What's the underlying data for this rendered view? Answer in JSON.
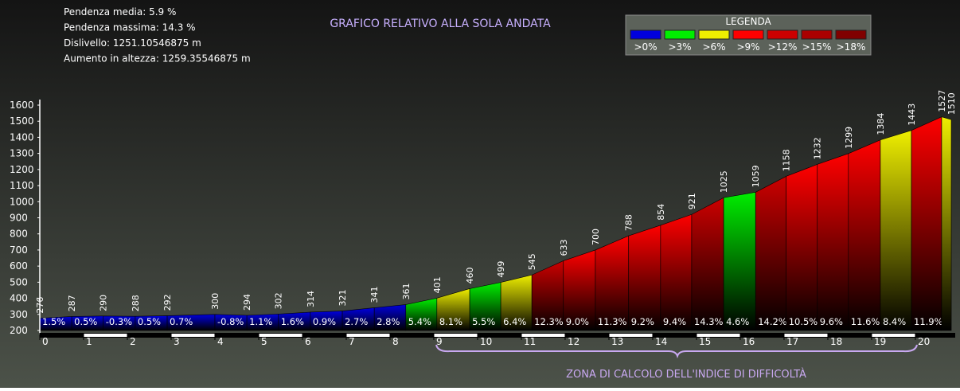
{
  "info_lines": [
    "Pendenza media: 5.9 %",
    "Pendenza massima: 14.3 %",
    "Dislivello: 1251.10546875 m",
    "Aumento in altezza: 1259.35546875 m"
  ],
  "chart_data": {
    "type": "area",
    "title": "GRAFICO RELATIVO ALLA SOLA ANDATA",
    "legend_title": "LEGENDA",
    "legend": [
      {
        "name": ">0%",
        "color": "#0000dd"
      },
      {
        "name": ">3%",
        "color": "#00ee00"
      },
      {
        "name": ">6%",
        "color": "#eeee00"
      },
      {
        "name": ">9%",
        "color": "#ff0000"
      },
      {
        "name": ">12%",
        "color": "#cc0000"
      },
      {
        "name": ">15%",
        "color": "#aa0000"
      },
      {
        "name": ">18%",
        "color": "#800000"
      }
    ],
    "x": [
      0,
      0.73,
      1.45,
      2.18,
      2.91,
      4.0,
      4.73,
      5.45,
      6.18,
      6.91,
      7.64,
      8.36,
      9.07,
      9.82,
      10.53,
      11.24,
      11.96,
      12.69,
      13.45,
      14.18,
      14.89,
      15.62,
      16.35,
      17.05,
      17.76,
      18.47,
      19.2,
      19.91,
      20.6,
      20.82
    ],
    "values": [
      276,
      287,
      290,
      288,
      292,
      300,
      294,
      302,
      314,
      321,
      341,
      361,
      401,
      460,
      499,
      545,
      633,
      700,
      788,
      854,
      921,
      1025,
      1059,
      1158,
      1232,
      1299,
      1384,
      1443,
      1527,
      1510
    ],
    "grade_labels": [
      "1.5%",
      "0.5%",
      "-0.3%",
      "0.5%",
      "0.7%",
      "-0.8%",
      "1.1%",
      "1.6%",
      "0.9%",
      "2.7%",
      "2.8%",
      "5.4%",
      "8.1%",
      "5.5%",
      "6.4%",
      "12.3%",
      "9.0%",
      "11.3%",
      "9.2%",
      "9.4%",
      "14.3%",
      "4.6%",
      "14.2%",
      "10.5%",
      "9.6%",
      "11.6%",
      "8.4%",
      "11.9%",
      null
    ],
    "segment_colors": [
      "#0000dd",
      "#0000dd",
      "#0000dd",
      "#0000dd",
      "#0000dd",
      "#0000dd",
      "#0000dd",
      "#0000dd",
      "#0000dd",
      "#0000dd",
      "#0000dd",
      "#00ee00",
      "#eeee00",
      "#00ee00",
      "#eeee00",
      "#cc0000",
      "#ff0000",
      "#ff0000",
      "#ff0000",
      "#ff0000",
      "#cc0000",
      "#00ee00",
      "#cc0000",
      "#ff0000",
      "#ff0000",
      "#ff0000",
      "#eeee00",
      "#ff0000",
      "#eeee00"
    ],
    "xlim": [
      0,
      20.91
    ],
    "ylim": [
      200,
      1600
    ],
    "xticks": [
      0,
      1,
      2,
      3,
      4,
      5,
      6,
      7,
      8,
      9,
      10,
      11,
      12,
      13,
      14,
      15,
      16,
      17,
      18,
      19,
      20
    ],
    "yticks": [
      200,
      300,
      400,
      500,
      600,
      700,
      800,
      900,
      1000,
      1100,
      1200,
      1300,
      1400,
      1500,
      1600
    ],
    "annotation": "ZONA DI CALCOLO DELL'INDICE DI DIFFICOLTÀ"
  }
}
